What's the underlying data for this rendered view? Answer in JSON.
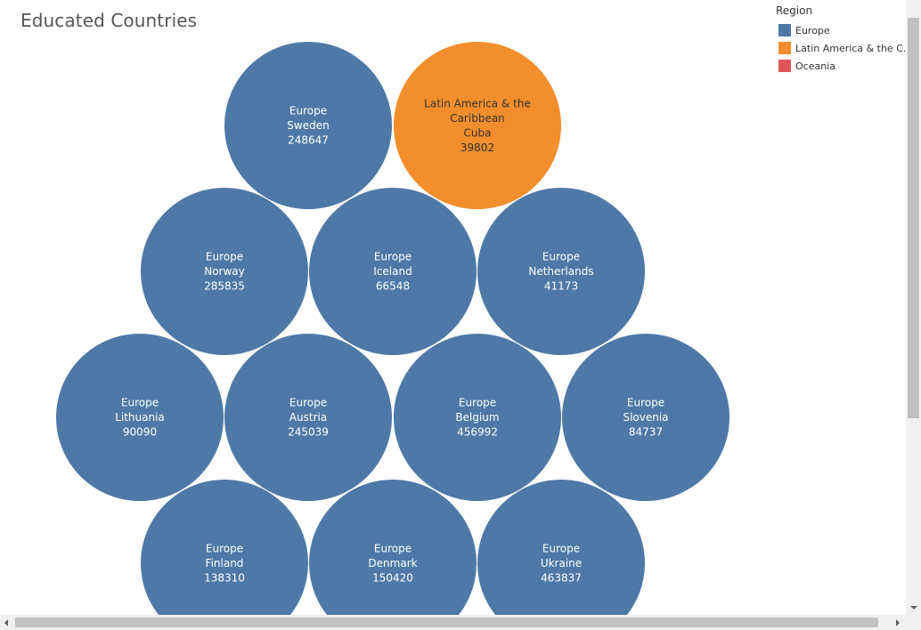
{
  "chart_data": {
    "type": "bubble",
    "title": "Educated Countries",
    "legend": {
      "title": "Region",
      "placement": "top-right",
      "items": [
        {
          "label": "Europe",
          "color": "#4e79a7"
        },
        {
          "label": "Latin America & the C..",
          "color": "#f28e2b"
        },
        {
          "label": "Oceania",
          "color": "#e15759"
        }
      ]
    },
    "bubbles": [
      {
        "region": "Europe",
        "country": "Sweden",
        "value": "248647",
        "color": "#4e79a7",
        "text_color": "#ffffff"
      },
      {
        "region_lines": [
          "Latin America & the",
          "Caribbean"
        ],
        "country": "Cuba",
        "value": "39802",
        "color": "#f28e2b",
        "text_color": "#333333"
      },
      {
        "region": "Europe",
        "country": "Norway",
        "value": "285835",
        "color": "#4e79a7",
        "text_color": "#ffffff"
      },
      {
        "region": "Europe",
        "country": "Iceland",
        "value": "66548",
        "color": "#4e79a7",
        "text_color": "#ffffff"
      },
      {
        "region": "Europe",
        "country": "Netherlands",
        "value": "41173",
        "color": "#4e79a7",
        "text_color": "#ffffff"
      },
      {
        "region": "Europe",
        "country": "Lithuania",
        "value": "90090",
        "color": "#4e79a7",
        "text_color": "#ffffff"
      },
      {
        "region": "Europe",
        "country": "Austria",
        "value": "245039",
        "color": "#4e79a7",
        "text_color": "#ffffff"
      },
      {
        "region": "Europe",
        "country": "Belgium",
        "value": "456992",
        "color": "#4e79a7",
        "text_color": "#ffffff"
      },
      {
        "region": "Europe",
        "country": "Slovenia",
        "value": "84737",
        "color": "#4e79a7",
        "text_color": "#ffffff"
      },
      {
        "region": "Europe",
        "country": "Finland",
        "value": "138310",
        "color": "#4e79a7",
        "text_color": "#ffffff"
      },
      {
        "region": "Europe",
        "country": "Denmark",
        "value": "150420",
        "color": "#4e79a7",
        "text_color": "#ffffff"
      },
      {
        "region": "Europe",
        "country": "Ukraine",
        "value": "463837",
        "color": "#4e79a7",
        "text_color": "#ffffff"
      }
    ]
  }
}
